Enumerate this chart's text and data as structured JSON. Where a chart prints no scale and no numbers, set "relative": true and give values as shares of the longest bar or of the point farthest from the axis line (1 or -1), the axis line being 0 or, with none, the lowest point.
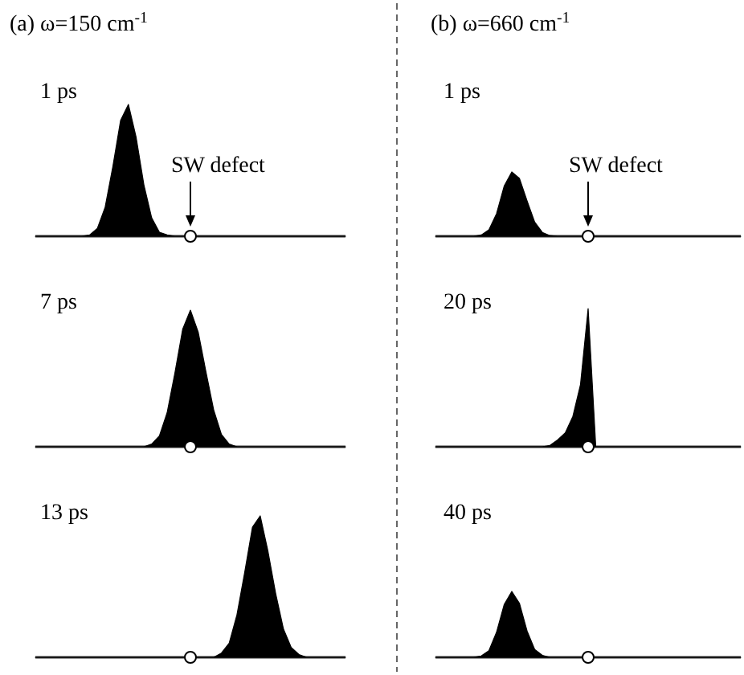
{
  "chart_data": [
    {
      "type": "area",
      "title": "(a) ω=150 cm$^{-1}$",
      "relative": true,
      "annotations": [
        "1 ps",
        "SW defect"
      ],
      "categories": [
        null,
        null,
        null,
        null,
        null,
        null,
        null,
        null,
        null,
        null,
        null,
        null,
        null,
        null,
        null,
        null,
        null,
        null,
        null,
        null,
        null,
        null,
        null,
        null,
        null,
        null,
        null,
        null,
        null,
        null,
        null,
        null,
        null,
        null,
        null,
        null,
        null,
        null,
        null,
        null,
        null
      ],
      "series": [
        {
          "color": "#000000",
          "values": [
            0,
            0,
            0,
            0,
            0,
            0,
            0,
            0.01,
            0.06,
            0.22,
            0.53,
            0.88,
            1,
            0.75,
            0.39,
            0.14,
            0.03,
            0.01,
            0,
            0,
            0,
            0,
            0,
            0,
            0,
            0,
            0,
            0,
            0,
            0,
            0,
            0,
            0,
            0,
            0,
            0,
            0,
            0,
            0,
            0,
            0
          ]
        }
      ]
    },
    {
      "type": "area",
      "relative": true,
      "annotations": [
        "7 ps"
      ],
      "categories": [
        null,
        null,
        null,
        null,
        null,
        null,
        null,
        null,
        null,
        null,
        null,
        null,
        null,
        null,
        null,
        null,
        null,
        null,
        null,
        null,
        null,
        null,
        null,
        null,
        null,
        null,
        null,
        null,
        null,
        null,
        null,
        null,
        null,
        null,
        null,
        null,
        null,
        null,
        null,
        null,
        null
      ],
      "series": [
        {
          "color": "#000000",
          "values": [
            0,
            0,
            0,
            0,
            0,
            0,
            0,
            0,
            0,
            0,
            0,
            0,
            0,
            0,
            0,
            0.02,
            0.08,
            0.25,
            0.54,
            0.86,
            1,
            0.84,
            0.55,
            0.27,
            0.09,
            0.02,
            0,
            0,
            0,
            0,
            0,
            0,
            0,
            0,
            0,
            0,
            0,
            0,
            0,
            0,
            0
          ]
        }
      ]
    },
    {
      "type": "area",
      "relative": true,
      "annotations": [
        "13 ps"
      ],
      "categories": [
        null,
        null,
        null,
        null,
        null,
        null,
        null,
        null,
        null,
        null,
        null,
        null,
        null,
        null,
        null,
        null,
        null,
        null,
        null,
        null,
        null,
        null,
        null,
        null,
        null,
        null,
        null,
        null,
        null,
        null,
        null,
        null,
        null,
        null,
        null,
        null,
        null,
        null,
        null,
        null,
        null
      ],
      "series": [
        {
          "color": "#000000",
          "values": [
            0,
            0,
            0,
            0,
            0,
            0,
            0,
            0,
            0,
            0,
            0,
            0,
            0,
            0,
            0,
            0,
            0,
            0,
            0,
            0,
            0,
            0,
            0,
            0,
            0.03,
            0.1,
            0.3,
            0.6,
            0.92,
            1,
            0.75,
            0.45,
            0.2,
            0.07,
            0.02,
            0,
            0,
            0,
            0,
            0,
            0
          ]
        }
      ]
    },
    {
      "type": "area",
      "title": "(b) ω=660 cm$^{-1}$",
      "relative": true,
      "annotations": [
        "1 ps",
        "SW defect"
      ],
      "categories": [
        null,
        null,
        null,
        null,
        null,
        null,
        null,
        null,
        null,
        null,
        null,
        null,
        null,
        null,
        null,
        null,
        null,
        null,
        null,
        null,
        null,
        null,
        null,
        null,
        null,
        null,
        null,
        null,
        null,
        null,
        null,
        null,
        null,
        null,
        null,
        null,
        null,
        null,
        null,
        null,
        null
      ],
      "series": [
        {
          "color": "#000000",
          "values": [
            0,
            0,
            0,
            0,
            0,
            0,
            0.02,
            0.1,
            0.35,
            0.78,
            1,
            0.9,
            0.55,
            0.22,
            0.06,
            0.01,
            0,
            0,
            0,
            0,
            0,
            0,
            0,
            0,
            0,
            0,
            0,
            0,
            0,
            0,
            0,
            0,
            0,
            0,
            0,
            0,
            0,
            0,
            0,
            0,
            0
          ]
        }
      ]
    },
    {
      "type": "area",
      "relative": true,
      "annotations": [
        "20 ps"
      ],
      "categories": [
        null,
        null,
        null,
        null,
        null,
        null,
        null,
        null,
        null,
        null,
        null,
        null,
        null,
        null,
        null,
        null,
        null,
        null,
        null,
        null,
        null,
        null,
        null,
        null,
        null,
        null,
        null,
        null,
        null,
        null,
        null,
        null,
        null,
        null,
        null,
        null,
        null,
        null,
        null,
        null,
        null
      ],
      "series": [
        {
          "color": "#000000",
          "values": [
            0,
            0,
            0,
            0,
            0,
            0,
            0,
            0,
            0,
            0,
            0,
            0,
            0,
            0,
            0,
            0.01,
            0.05,
            0.1,
            0.22,
            0.45,
            1,
            0,
            0,
            0,
            0,
            0,
            0,
            0,
            0,
            0,
            0,
            0,
            0,
            0,
            0,
            0,
            0,
            0,
            0,
            0,
            0
          ]
        }
      ]
    },
    {
      "type": "area",
      "relative": true,
      "annotations": [
        "40 ps"
      ],
      "categories": [
        null,
        null,
        null,
        null,
        null,
        null,
        null,
        null,
        null,
        null,
        null,
        null,
        null,
        null,
        null,
        null,
        null,
        null,
        null,
        null,
        null,
        null,
        null,
        null,
        null,
        null,
        null,
        null,
        null,
        null,
        null,
        null,
        null,
        null,
        null,
        null,
        null,
        null,
        null,
        null,
        null
      ],
      "series": [
        {
          "color": "#000000",
          "values": [
            0,
            0,
            0,
            0,
            0,
            0,
            0.02,
            0.1,
            0.38,
            0.8,
            1,
            0.82,
            0.4,
            0.12,
            0.03,
            0,
            0,
            0,
            0,
            0,
            0,
            0,
            0,
            0,
            0,
            0,
            0,
            0,
            0,
            0,
            0,
            0,
            0,
            0,
            0,
            0,
            0,
            0,
            0,
            0,
            0
          ]
        }
      ]
    }
  ]
}
